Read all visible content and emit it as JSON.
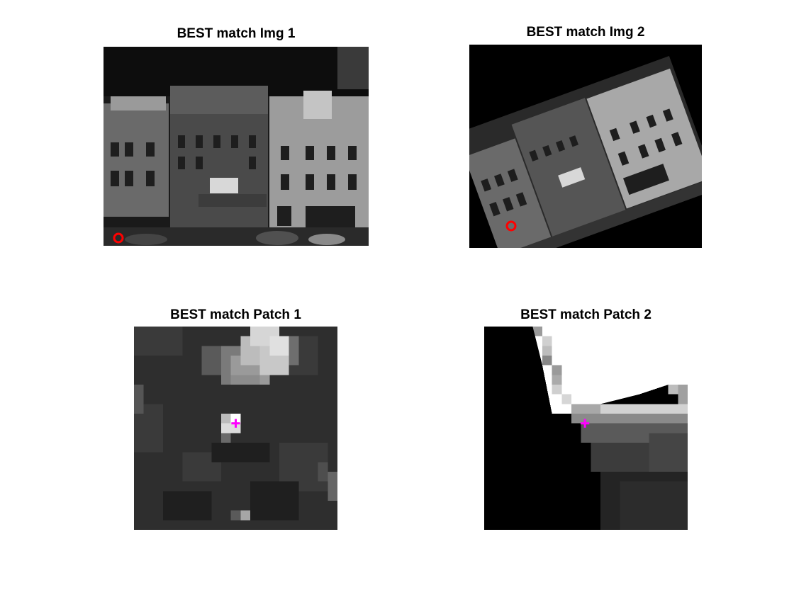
{
  "figure": {
    "panels": [
      {
        "title": "BEST match Img 1",
        "content": "grayscale photo of a row of model building facades",
        "marker": "red circle",
        "marker_color": "#ff0000"
      },
      {
        "title": "BEST match Img 2",
        "content": "same photo rotated about 20 degrees on black background",
        "marker": "red circle",
        "marker_color": "#ff0000"
      },
      {
        "title": "BEST match Patch 1",
        "content": "pixelated grayscale patch",
        "marker": "magenta plus",
        "marker_color": "#ff00ff"
      },
      {
        "title": "BEST match Patch 2",
        "content": "pixelated grayscale patch with dark wedge and bright corner",
        "marker": "magenta plus",
        "marker_color": "#ff00ff"
      }
    ]
  }
}
